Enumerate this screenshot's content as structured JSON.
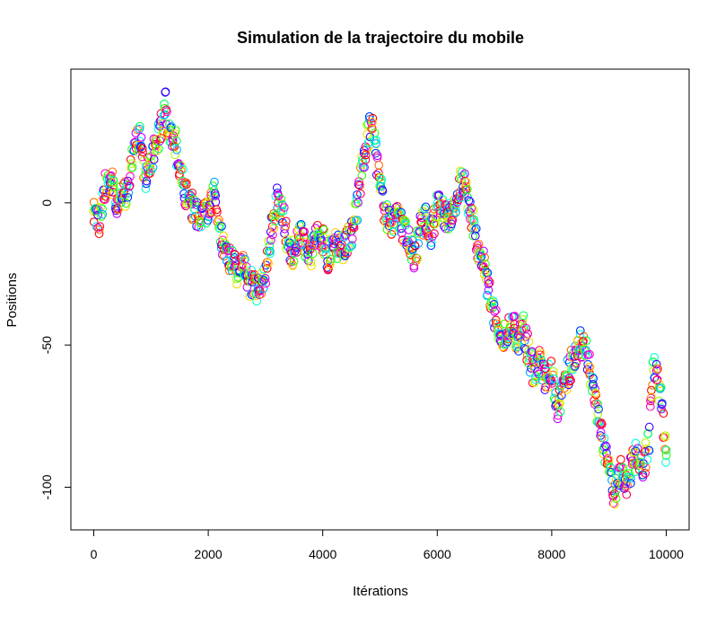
{
  "chart_data": {
    "type": "scatter",
    "title": "Simulation de la trajectoire du mobile",
    "xlabel": "Itérations",
    "ylabel": "Positions",
    "xlim": [
      -400,
      10400
    ],
    "ylim": [
      -115,
      47
    ],
    "xticks": [
      0,
      2000,
      4000,
      6000,
      8000,
      10000
    ],
    "yticks": [
      0,
      -50,
      -100
    ],
    "grid": false,
    "legend": "none",
    "marker": "open-circle",
    "palette": [
      "#FF0000",
      "#FF6A00",
      "#FFD500",
      "#AAFF00",
      "#33FF00",
      "#00FF66",
      "#00FFDD",
      "#00AAFF",
      "#0033FF",
      "#4400FF",
      "#BB00FF",
      "#FF00CC",
      "#FF0055"
    ],
    "trajectory": {
      "x": [
        0,
        100,
        200,
        300,
        400,
        500,
        600,
        700,
        800,
        900,
        1000,
        1100,
        1200,
        1250,
        1300,
        1400,
        1500,
        1600,
        1700,
        1800,
        1900,
        2000,
        2100,
        2200,
        2300,
        2400,
        2500,
        2600,
        2700,
        2800,
        2900,
        3000,
        3100,
        3200,
        3300,
        3400,
        3500,
        3600,
        3700,
        3800,
        3900,
        4000,
        4100,
        4200,
        4300,
        4400,
        4500,
        4600,
        4700,
        4800,
        4850,
        4900,
        5000,
        5100,
        5200,
        5300,
        5400,
        5500,
        5600,
        5700,
        5800,
        5900,
        6000,
        6100,
        6200,
        6300,
        6400,
        6500,
        6600,
        6700,
        6800,
        6900,
        7000,
        7100,
        7200,
        7300,
        7400,
        7500,
        7600,
        7700,
        7800,
        7900,
        8000,
        8100,
        8200,
        8300,
        8400,
        8500,
        8600,
        8700,
        8800,
        8900,
        9000,
        9100,
        9200,
        9300,
        9400,
        9500,
        9600,
        9700,
        9750,
        9800,
        9900,
        10000
      ],
      "y": [
        -5,
        -8,
        6,
        8,
        -2,
        3,
        5,
        20,
        22,
        8,
        15,
        22,
        30,
        36,
        28,
        26,
        10,
        5,
        0,
        -3,
        -5,
        -2,
        3,
        -10,
        -18,
        -22,
        -25,
        -20,
        -28,
        -26,
        -30,
        -25,
        -10,
        0,
        -5,
        -15,
        -18,
        -12,
        -15,
        -18,
        -10,
        -15,
        -20,
        -12,
        -18,
        -15,
        -10,
        0,
        15,
        25,
        29,
        22,
        5,
        -5,
        -10,
        -2,
        -8,
        -12,
        -18,
        -10,
        -5,
        -10,
        -2,
        -3,
        -5,
        0,
        8,
        5,
        -5,
        -15,
        -20,
        -30,
        -40,
        -48,
        -45,
        -42,
        -50,
        -45,
        -55,
        -60,
        -55,
        -65,
        -60,
        -72,
        -65,
        -60,
        -55,
        -50,
        -52,
        -65,
        -75,
        -85,
        -95,
        -105,
        -95,
        -100,
        -92,
        -90,
        -95,
        -85,
        -65,
        -60,
        -70,
        -90
      ]
    },
    "spread": 5
  }
}
